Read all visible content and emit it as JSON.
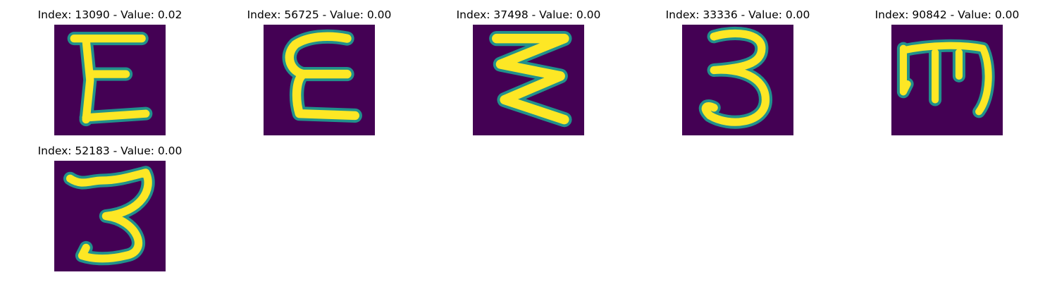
{
  "panels": [
    {
      "title": "Index: 13090 - Value: 0.02",
      "glyph": "E-like handwritten character"
    },
    {
      "title": "Index: 56725 - Value: 0.00",
      "glyph": "curly E handwritten character"
    },
    {
      "title": "Index: 37498 - Value: 0.00",
      "glyph": "zigzag handwritten character"
    },
    {
      "title": "Index: 33336 - Value: 0.00",
      "glyph": "handwritten digit three"
    },
    {
      "title": "Index: 90842 - Value: 0.00",
      "glyph": "m-like handwritten character"
    },
    {
      "title": "Index: 52183 - Value: 0.00",
      "glyph": "handwritten digit three"
    }
  ],
  "colors": {
    "background": "#440154",
    "stroke": "#fde725",
    "edge": "#21918c"
  }
}
